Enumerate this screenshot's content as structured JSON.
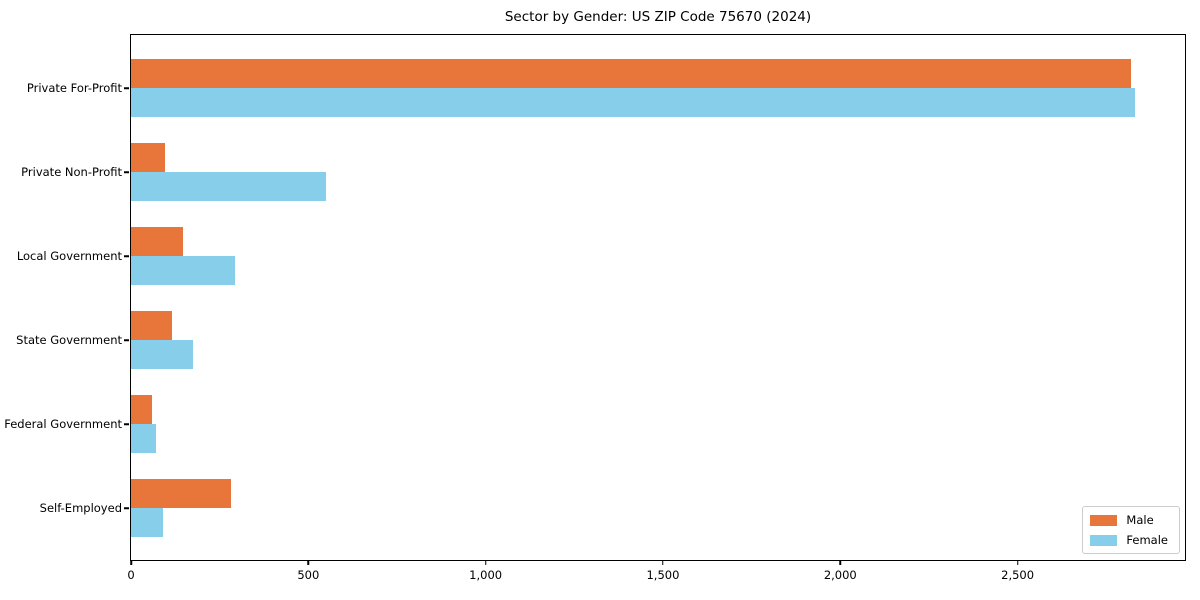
{
  "chart_data": {
    "type": "bar",
    "orientation": "horizontal",
    "title": "Sector by Gender: US ZIP Code 75670 (2024)",
    "categories": [
      "Private For-Profit",
      "Private Non-Profit",
      "Local Government",
      "State Government",
      "Federal Government",
      "Self-Employed"
    ],
    "series": [
      {
        "name": "Male",
        "color": "#e8763b",
        "values": [
          2820,
          95,
          146,
          115,
          59,
          282
        ]
      },
      {
        "name": "Female",
        "color": "#87ceeb",
        "values": [
          2830,
          550,
          293,
          175,
          70,
          90
        ]
      }
    ],
    "xlabel": "",
    "ylabel": "",
    "xlim": [
      0,
      2972
    ],
    "x_tick_values": [
      0,
      500,
      1000,
      1500,
      2000,
      2500
    ],
    "x_tick_labels": [
      "0",
      "500",
      "1,000",
      "1,500",
      "2,000",
      "2,500"
    ],
    "grid": false,
    "legend_position": "lower right",
    "legend_labels": [
      "Male",
      "Female"
    ]
  },
  "colors": {
    "male": "#e8763b",
    "female": "#87ceeb",
    "spine": "#000000",
    "legend_border": "#cccccc",
    "background": "#ffffff"
  }
}
